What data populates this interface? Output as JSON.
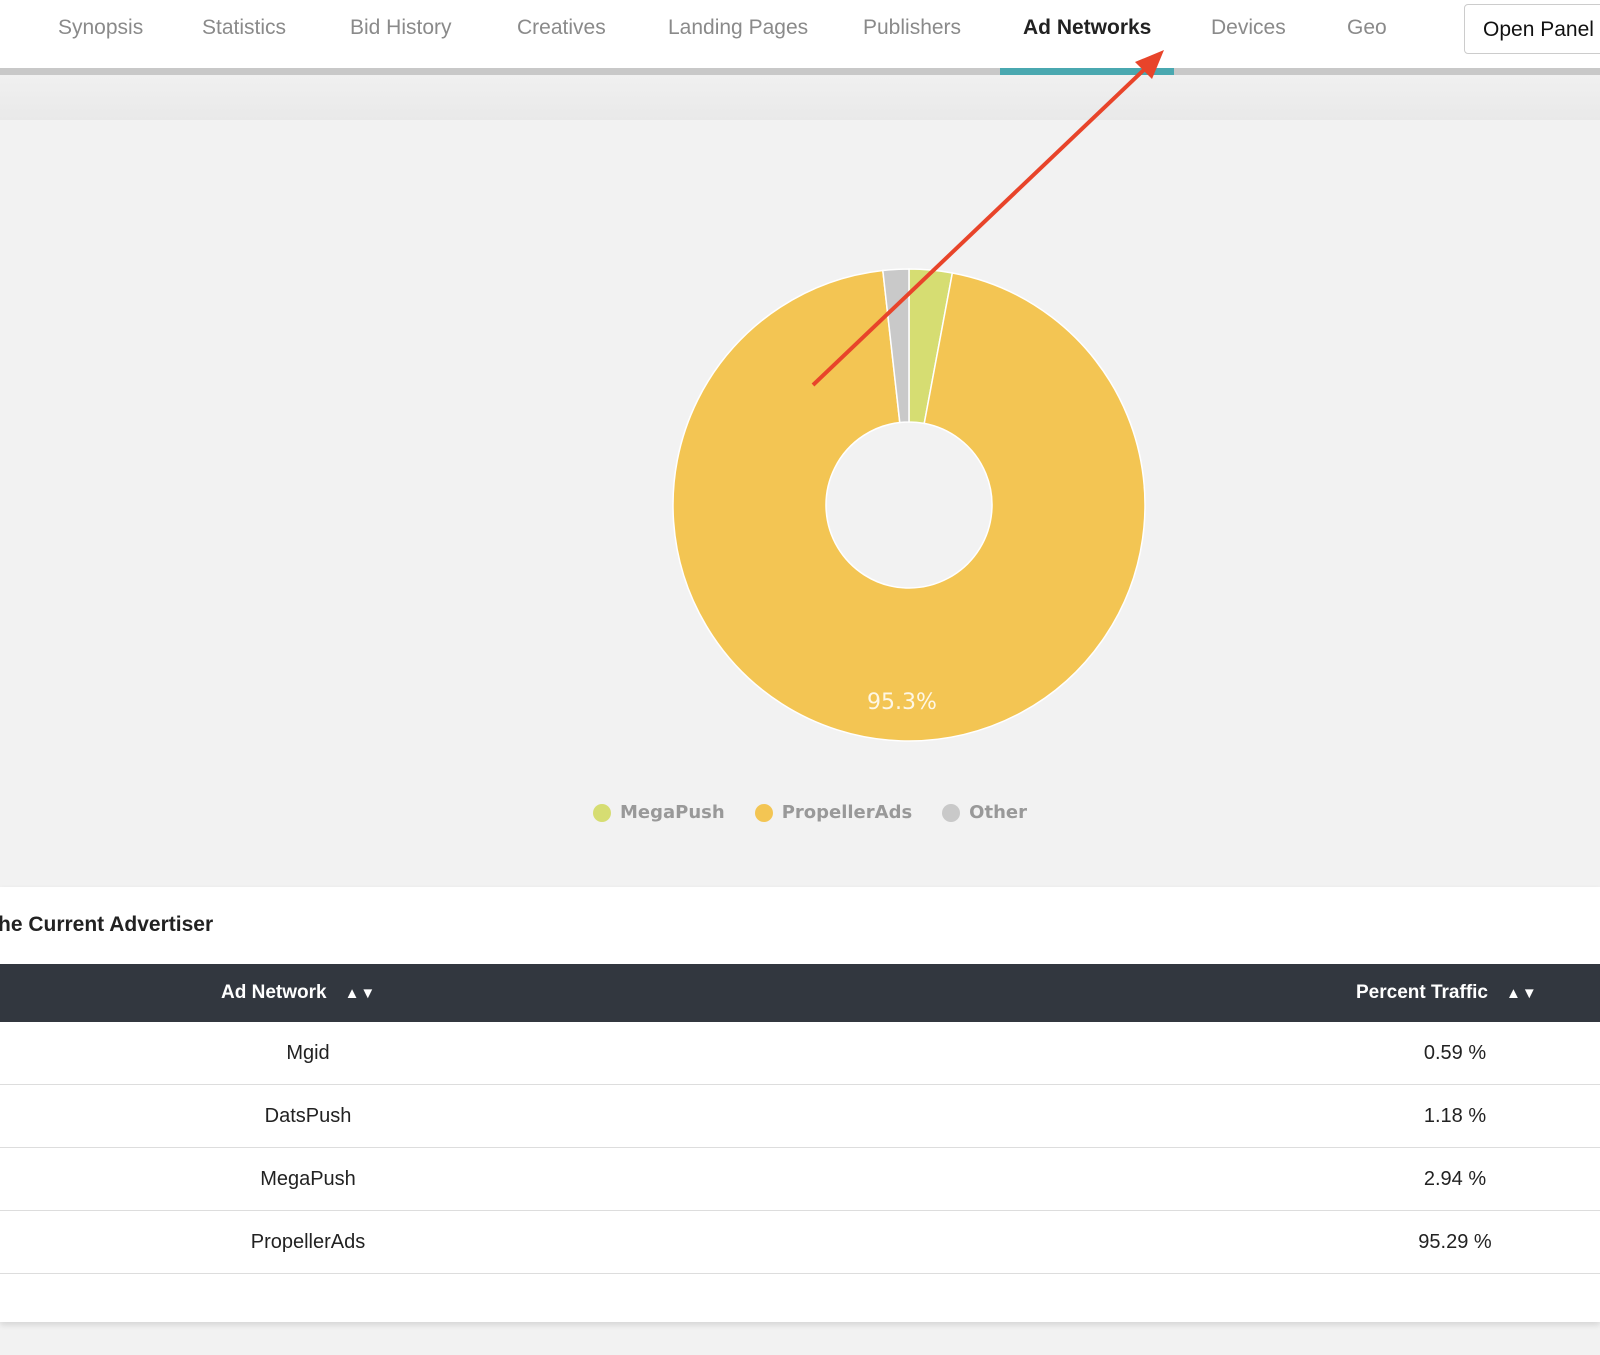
{
  "nav": {
    "tabs": [
      {
        "label": "Synopsis",
        "active": false
      },
      {
        "label": "Statistics",
        "active": false
      },
      {
        "label": "Bid History",
        "active": false
      },
      {
        "label": "Creatives",
        "active": false
      },
      {
        "label": "Landing Pages",
        "active": false
      },
      {
        "label": "Publishers",
        "active": false
      },
      {
        "label": "Ad Networks",
        "active": true
      },
      {
        "label": "Devices",
        "active": false
      },
      {
        "label": "Geo",
        "active": false
      }
    ],
    "open_panel_label": "Open Panel i",
    "accent": "#4aa8b0"
  },
  "chart_data": {
    "type": "pie",
    "donut": true,
    "slices": [
      {
        "name": "MegaPush",
        "value": 2.94,
        "color": "#d6dd72"
      },
      {
        "name": "PropellerAds",
        "value": 95.29,
        "color": "#f3c553"
      },
      {
        "name": "Other",
        "value": 1.77,
        "color": "#c9c9c9"
      }
    ],
    "data_labels": [
      "",
      "95.3%",
      ""
    ],
    "legend": [
      "MegaPush",
      "PropellerAds",
      "Other"
    ],
    "legend_position": "bottom"
  },
  "annotation": {
    "arrow_color": "#e8442a"
  },
  "table": {
    "title": "he Current Advertiser",
    "headers": [
      "Ad Network",
      "Percent Traffic"
    ],
    "sort_icon": "▲▼",
    "rows": [
      [
        "Mgid",
        "0.59 %"
      ],
      [
        "DatsPush",
        "1.18 %"
      ],
      [
        "MegaPush",
        "2.94 %"
      ],
      [
        "PropellerAds",
        "95.29 %"
      ]
    ]
  }
}
